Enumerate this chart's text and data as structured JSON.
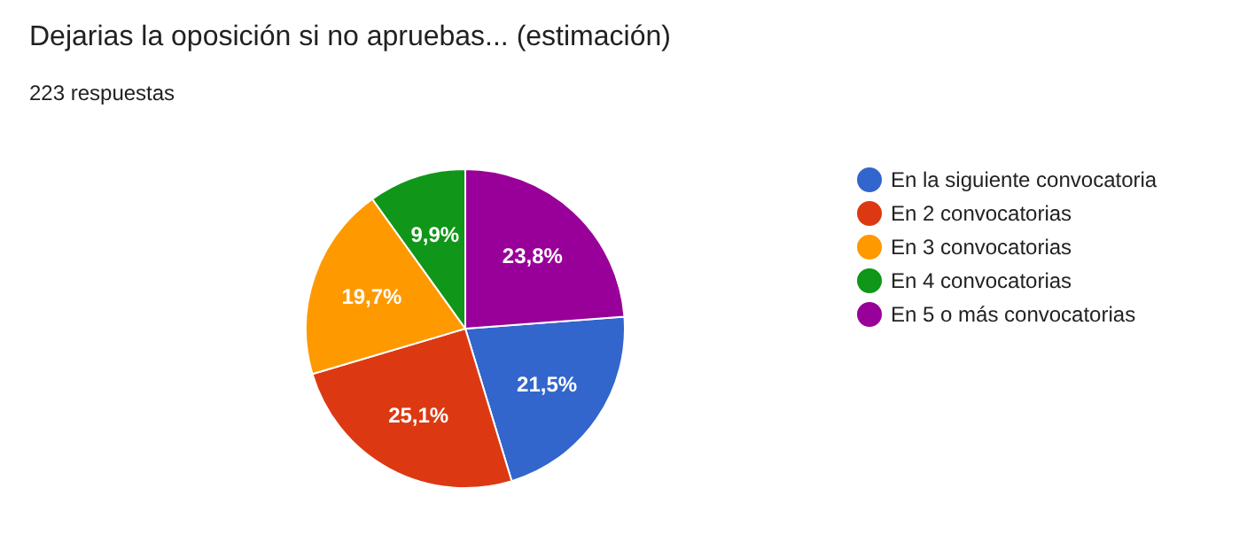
{
  "chart_data": {
    "type": "pie",
    "title": "Dejarias la oposición si no apruebas... (estimación)",
    "subtitle": "223 respuestas",
    "categories": [
      "En la siguiente convocatoria",
      "En 2 convocatorias",
      "En 3 convocatorias",
      "En 4 convocatorias",
      "En 5 o más convocatorias"
    ],
    "values": [
      21.5,
      25.1,
      19.7,
      9.9,
      23.8
    ],
    "value_labels": [
      "21,5%",
      "25,1%",
      "19,7%",
      "9,9%",
      "23,8%"
    ],
    "colors": [
      "#3366cc",
      "#dc3912",
      "#ff9900",
      "#109618",
      "#990099"
    ],
    "legend": "right"
  }
}
